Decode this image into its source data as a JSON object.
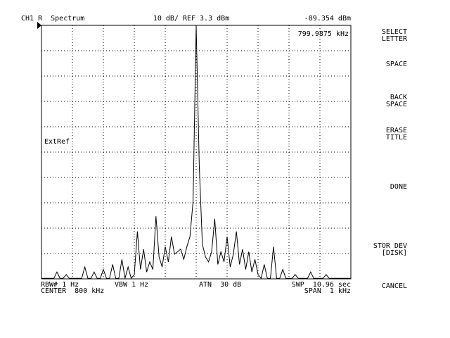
{
  "header": {
    "channel": "CH1 R  Spectrum",
    "scale": "10 dB/ REF 3.3 dBm",
    "marker_level": "-89.354 dBm"
  },
  "marker_freq": "799.9875 kHz",
  "ext_ref": "ExtRef",
  "footer": {
    "rbw": "RBW# 1 Hz",
    "vbw": "VBW 1 Hz",
    "atn": "ATN  30 dB",
    "swp": "SWP  10.96 sec",
    "center": "CENTER  800 kHz",
    "span": "SPAN  1 kHz"
  },
  "softkeys": [
    [
      "SELECT",
      "LETTER"
    ],
    [
      "SPACE"
    ],
    [
      "BACK",
      "SPACE"
    ],
    [
      "ERASE",
      "TITLE"
    ],
    [
      "DONE"
    ],
    [
      "STOR DEV",
      "[DISK]"
    ],
    [
      "CANCEL"
    ]
  ],
  "trace": {
    "ylim": [
      -96.7,
      3.3
    ],
    "values": [
      -96.5,
      -96.5,
      -96.5,
      -96.5,
      -96.5,
      -94,
      -96.5,
      -96.5,
      -95,
      -96.5,
      -96.5,
      -96.5,
      -96.5,
      -96.5,
      -92,
      -96.5,
      -96.5,
      -94,
      -96.5,
      -96.5,
      -93,
      -96.5,
      -96.5,
      -91,
      -96.5,
      -96.5,
      -89,
      -96.5,
      -92,
      -96.5,
      -95,
      -78,
      -93,
      -85,
      -94,
      -90,
      -93,
      -72,
      -88,
      -92,
      -84,
      -90,
      -80,
      -87,
      -86,
      -85,
      -89,
      -84,
      -80,
      -66,
      3.3,
      -52,
      -83,
      -88,
      -90,
      -86,
      -73,
      -91,
      -86,
      -90,
      -80,
      -92,
      -87,
      -78,
      -91,
      -85,
      -93,
      -86,
      -94,
      -89,
      -95,
      -96.5,
      -91,
      -96.5,
      -96.5,
      -84,
      -96.5,
      -96.5,
      -93,
      -96.5,
      -96.5,
      -96.5,
      -95,
      -96.5,
      -96.5,
      -96.5,
      -96.5,
      -94,
      -96.5,
      -96.5,
      -96.5,
      -96.5,
      -95,
      -96.5,
      -96.5,
      -96.5,
      -96.5,
      -96.5,
      -96.5,
      -96.5,
      -96.5
    ]
  }
}
